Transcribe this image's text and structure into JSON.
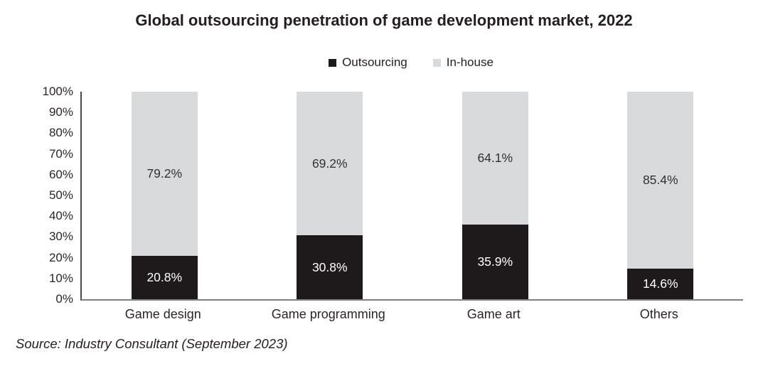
{
  "title": "Global outsourcing penetration of game development market, 2022",
  "source": "Source: Industry Consultant (September 2023)",
  "legend": [
    {
      "label": "Outsourcing",
      "color": "#1e1a1b"
    },
    {
      "label": "In-house",
      "color": "#d9dadc"
    }
  ],
  "colors": {
    "outsourcing_bar": "#1e1a1b",
    "inhouse_bar": "#d9dadc",
    "outsourcing_label_text": "#ffffff",
    "inhouse_label_text": "#323031"
  },
  "chart_data": {
    "type": "bar",
    "stacked": true,
    "title": "Global outsourcing penetration of game development market, 2022",
    "categories": [
      "Game design",
      "Game programming",
      "Game art",
      "Others"
    ],
    "series": [
      {
        "name": "Outsourcing",
        "values": [
          20.8,
          30.8,
          35.9,
          14.6
        ],
        "color": "#1e1a1b",
        "label_color": "#ffffff"
      },
      {
        "name": "In-house",
        "values": [
          79.2,
          69.2,
          64.1,
          85.4
        ],
        "color": "#d9dadc",
        "label_color": "#323031"
      }
    ],
    "value_suffix": "%",
    "y_ticks": [
      "0%",
      "10%",
      "20%",
      "30%",
      "40%",
      "50%",
      "60%",
      "70%",
      "80%",
      "90%",
      "100%"
    ],
    "ylim": [
      0,
      100
    ],
    "grid": false,
    "legend_position": "top"
  }
}
